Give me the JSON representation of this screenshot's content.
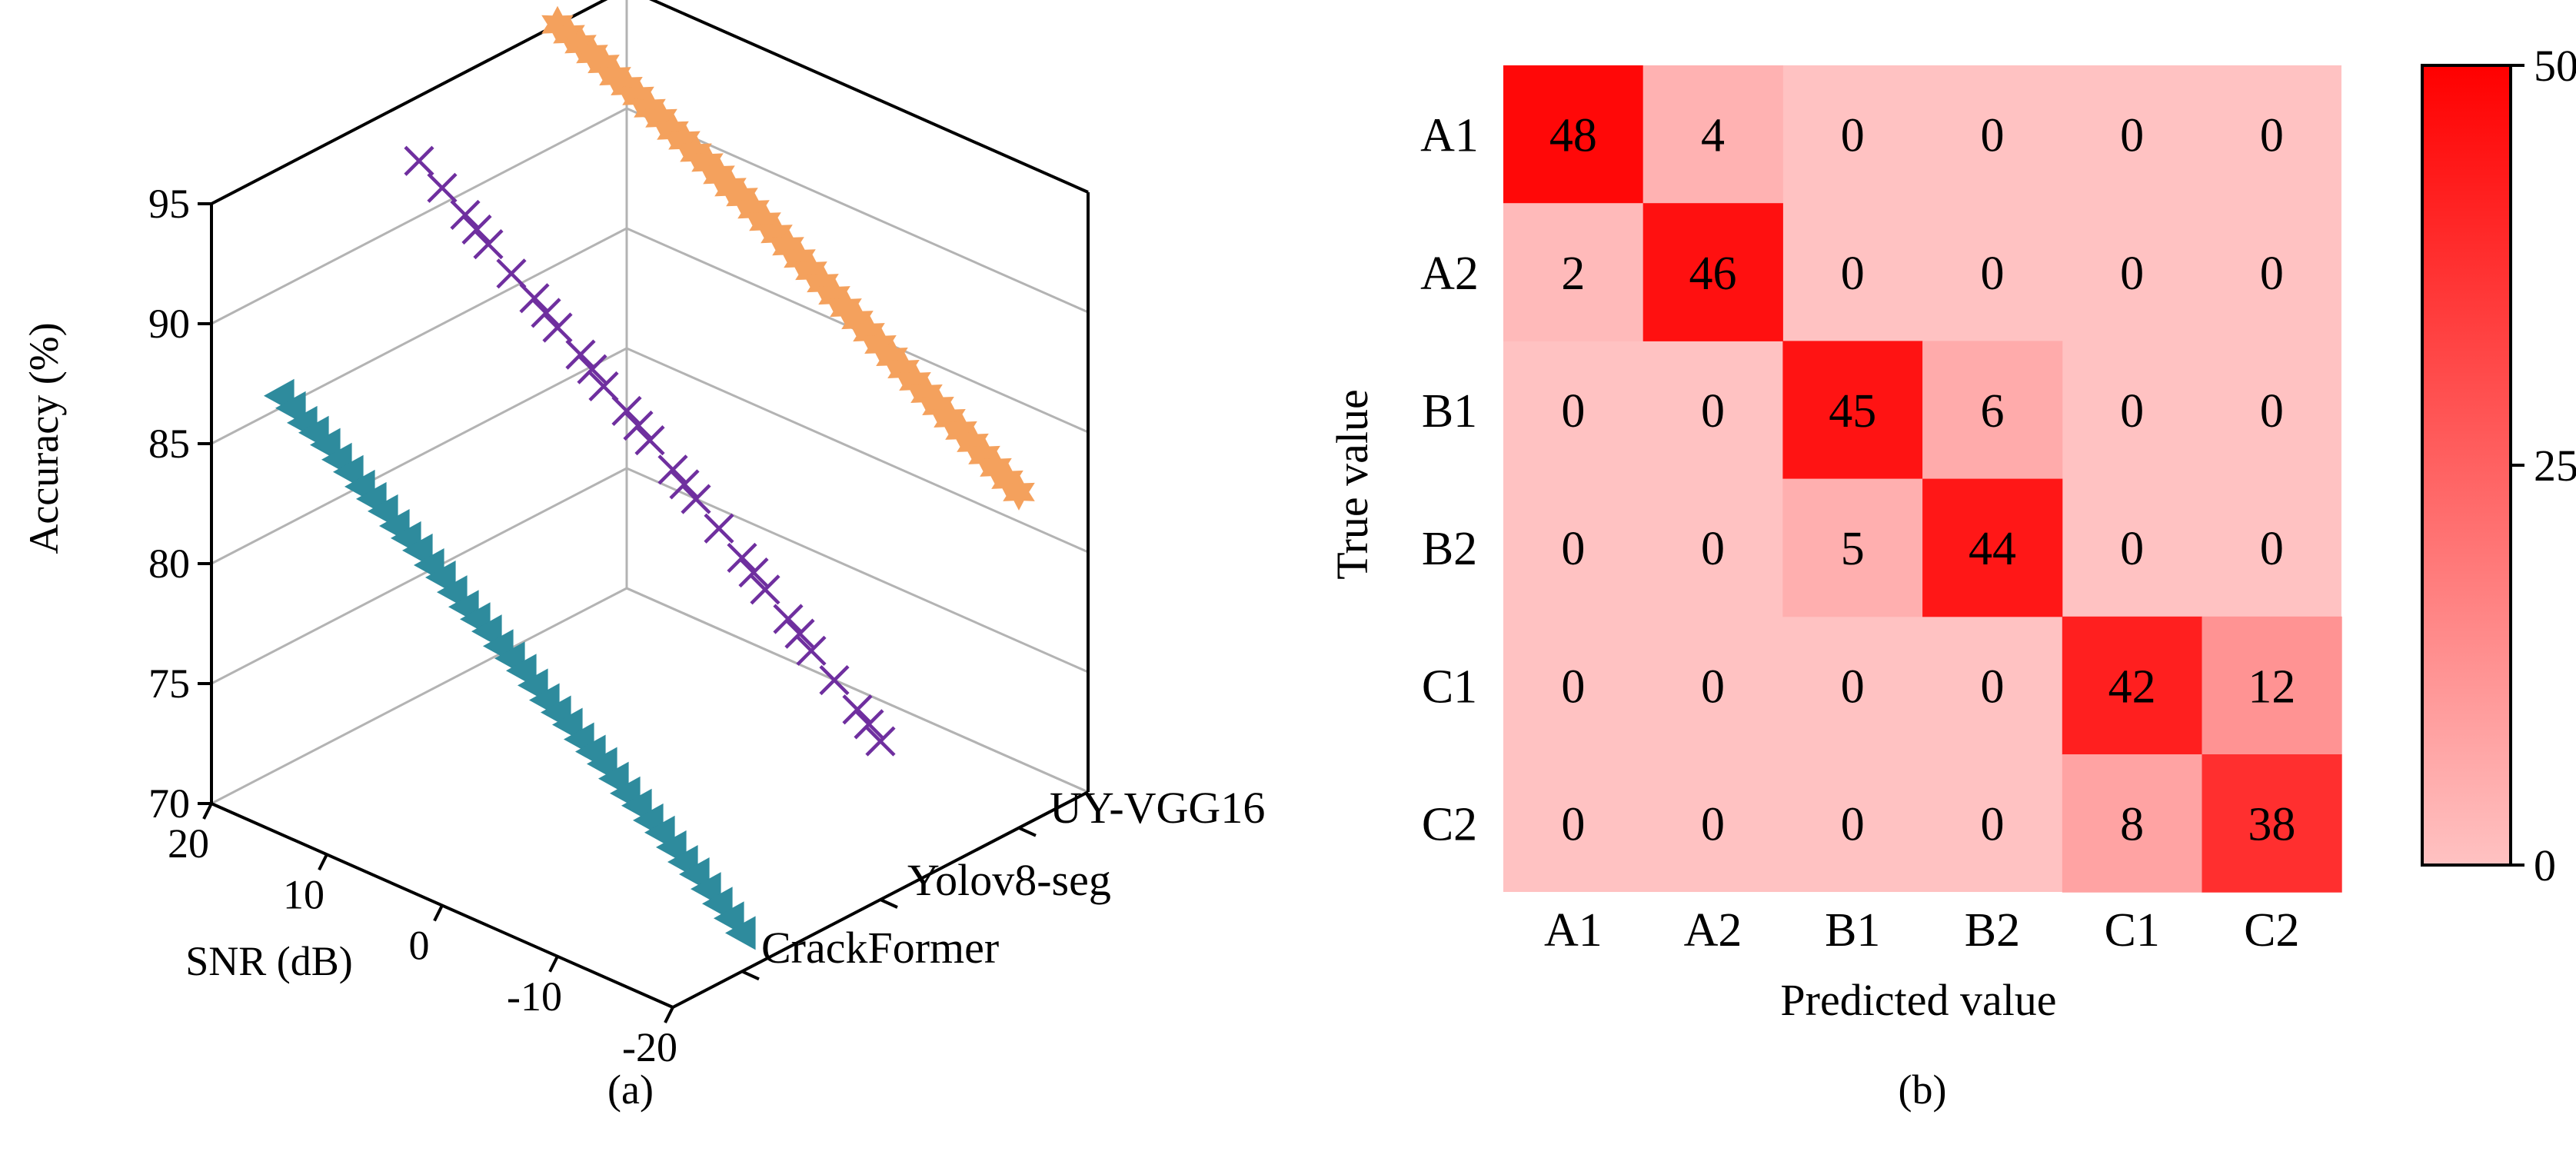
{
  "chart_data": [
    {
      "type": "scatter",
      "subtype": "3d-scatter",
      "caption": "(a)",
      "xlabel": "SNR (dB)",
      "ylabel": "Accuracy (%)",
      "x_ticks": [
        "20",
        "10",
        "0",
        "-10",
        "-20"
      ],
      "z_ticks": [
        "70",
        "75",
        "80",
        "85",
        "90",
        "95"
      ],
      "xlim": [
        20,
        -20
      ],
      "zlim": [
        70,
        95
      ],
      "grid": true,
      "series": [
        {
          "name": "CrackFormer",
          "marker": "left-triangle",
          "color": "#2e8b9d",
          "points": [
            [
              20,
              85.5
            ],
            [
              19,
              85.2
            ],
            [
              18,
              84.8
            ],
            [
              17,
              84.6
            ],
            [
              16,
              84.3
            ],
            [
              15,
              83.9
            ],
            [
              14,
              83.6
            ],
            [
              13,
              83.2
            ],
            [
              12,
              82.9
            ],
            [
              11,
              82.6
            ],
            [
              10,
              82.2
            ],
            [
              9,
              81.9
            ],
            [
              8,
              81.6
            ],
            [
              7,
              81.2
            ],
            [
              6,
              80.9
            ],
            [
              5,
              80.5
            ],
            [
              4,
              80.1
            ],
            [
              3,
              79.8
            ],
            [
              2,
              79.5
            ],
            [
              1,
              79.1
            ],
            [
              0,
              78.8
            ],
            [
              -1,
              78.5
            ],
            [
              -2,
              78.1
            ],
            [
              -3,
              77.7
            ],
            [
              -4,
              77.4
            ],
            [
              -5,
              77.1
            ],
            [
              -6,
              76.7
            ],
            [
              -7,
              76.4
            ],
            [
              -8,
              76.1
            ],
            [
              -9,
              75.7
            ],
            [
              -10,
              75.3
            ],
            [
              -11,
              75.0
            ],
            [
              -12,
              74.6
            ],
            [
              -13,
              74.3
            ],
            [
              -14,
              73.9
            ],
            [
              -15,
              73.5
            ],
            [
              -16,
              73.2
            ],
            [
              -17,
              72.8
            ],
            [
              -18,
              72.4
            ],
            [
              -19,
              72.0
            ],
            [
              -20,
              71.6
            ]
          ]
        },
        {
          "name": "Yolov8-seg",
          "marker": "x",
          "color": "#6f2f9f",
          "points": [
            [
              20,
              92.3
            ],
            [
              18,
              91.6
            ],
            [
              16,
              90.9
            ],
            [
              15,
              90.5
            ],
            [
              14,
              90.1
            ],
            [
              12,
              89.3
            ],
            [
              10,
              88.7
            ],
            [
              9,
              88.3
            ],
            [
              8,
              87.9
            ],
            [
              6,
              87.2
            ],
            [
              5,
              86.8
            ],
            [
              4,
              86.3
            ],
            [
              2,
              85.7
            ],
            [
              1,
              85.3
            ],
            [
              0,
              84.9
            ],
            [
              -2,
              84.1
            ],
            [
              -3,
              83.7
            ],
            [
              -4,
              83.3
            ],
            [
              -6,
              82.5
            ],
            [
              -8,
              81.7
            ],
            [
              -9,
              81.3
            ],
            [
              -10,
              80.8
            ],
            [
              -12,
              80.0
            ],
            [
              -13,
              79.6
            ],
            [
              -14,
              79.1
            ],
            [
              -16,
              78.3
            ],
            [
              -18,
              77.5
            ],
            [
              -19,
              77.1
            ],
            [
              -20,
              76.6
            ]
          ]
        },
        {
          "name": "UY-VGG16",
          "marker": "star",
          "color": "#f4a15d",
          "points": [
            [
              20,
              95.0
            ],
            [
              19,
              94.8
            ],
            [
              18,
              94.6
            ],
            [
              17,
              94.4
            ],
            [
              16,
              94.2
            ],
            [
              15,
              93.9
            ],
            [
              14,
              93.7
            ],
            [
              13,
              93.5
            ],
            [
              12,
              93.2
            ],
            [
              11,
              93.0
            ],
            [
              10,
              92.7
            ],
            [
              9,
              92.5
            ],
            [
              8,
              92.2
            ],
            [
              7,
              92.0
            ],
            [
              6,
              91.7
            ],
            [
              5,
              91.4
            ],
            [
              4,
              91.2
            ],
            [
              3,
              90.9
            ],
            [
              2,
              90.6
            ],
            [
              1,
              90.3
            ],
            [
              0,
              90.0
            ],
            [
              -1,
              89.7
            ],
            [
              -2,
              89.4
            ],
            [
              -3,
              89.1
            ],
            [
              -4,
              88.8
            ],
            [
              -5,
              88.5
            ],
            [
              -6,
              88.2
            ],
            [
              -7,
              87.9
            ],
            [
              -8,
              87.6
            ],
            [
              -9,
              87.3
            ],
            [
              -10,
              87.0
            ],
            [
              -11,
              86.7
            ],
            [
              -12,
              86.4
            ],
            [
              -13,
              86.1
            ],
            [
              -14,
              85.8
            ],
            [
              -15,
              85.5
            ],
            [
              -16,
              85.2
            ],
            [
              -17,
              84.9
            ],
            [
              -18,
              84.6
            ],
            [
              -19,
              84.3
            ],
            [
              -20,
              84.0
            ]
          ]
        }
      ]
    },
    {
      "type": "heatmap",
      "subtype": "confusion-matrix",
      "caption": "(b)",
      "xlabel": "Predicted value",
      "ylabel": "True value",
      "categories": [
        "A1",
        "A2",
        "B1",
        "B2",
        "C1",
        "C2"
      ],
      "values": [
        [
          48,
          4,
          0,
          0,
          0,
          0
        ],
        [
          2,
          46,
          0,
          0,
          0,
          0
        ],
        [
          0,
          0,
          45,
          6,
          0,
          0
        ],
        [
          0,
          0,
          5,
          44,
          0,
          0
        ],
        [
          0,
          0,
          0,
          0,
          42,
          12
        ],
        [
          0,
          0,
          0,
          0,
          8,
          38
        ]
      ],
      "colorbar": {
        "min": 0,
        "max": 50,
        "ticks": [
          "0",
          "25",
          "50"
        ],
        "low_color": "#ffc2c2",
        "high_color": "#ff0000"
      }
    }
  ]
}
